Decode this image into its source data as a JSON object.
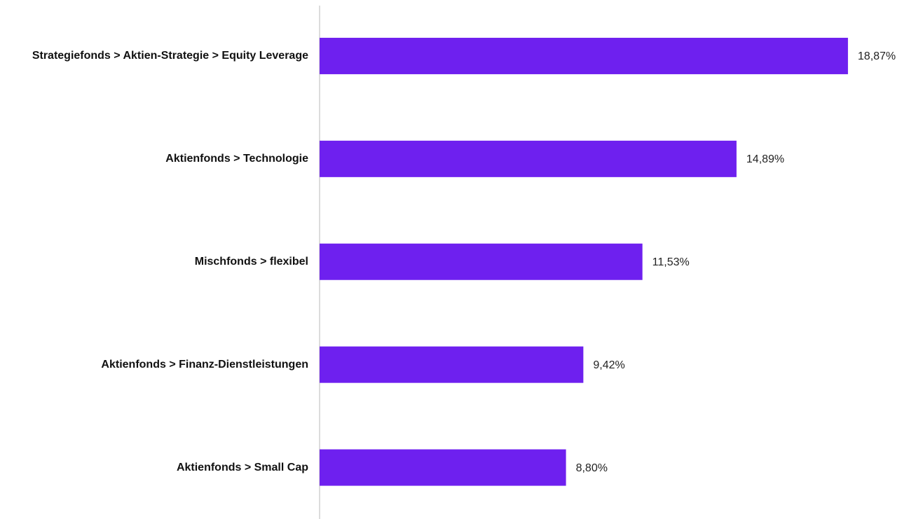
{
  "chart_data": {
    "type": "bar",
    "orientation": "horizontal",
    "categories": [
      "Strategiefonds > Aktien-Strategie > Equity Leverage",
      "Aktienfonds > Technologie",
      "Mischfonds > flexibel",
      "Aktienfonds > Finanz-Dienstleistungen",
      "Aktienfonds > Small Cap"
    ],
    "values": [
      18.87,
      14.89,
      11.53,
      9.42,
      8.8
    ],
    "value_labels": [
      "18,87%",
      "14,89%",
      "11,53%",
      "9,42%",
      "8,80%"
    ],
    "color": "#6e20ef",
    "xlim": [
      0,
      21
    ]
  }
}
